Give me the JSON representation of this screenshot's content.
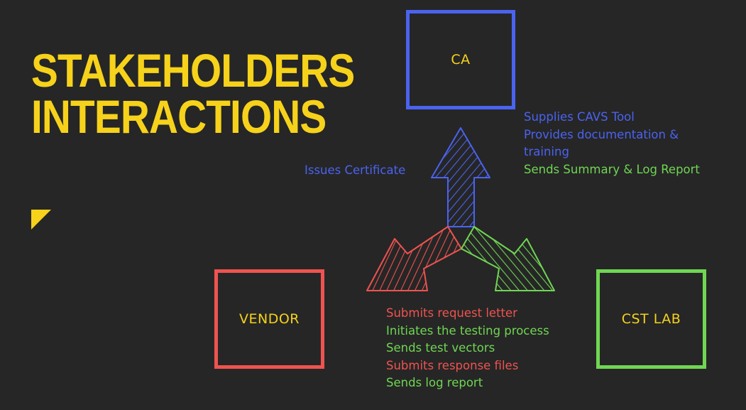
{
  "slide": {
    "title_line_1": "STAKEHOLDERS",
    "title_line_2": "INTERACTIONS"
  },
  "colors": {
    "background": "#262626",
    "title": "#f6d21b",
    "ca": "#4a63f0",
    "vendor": "#ef5350",
    "lab": "#6fd653"
  },
  "nodes": {
    "ca": {
      "label": "CA",
      "color": "#4a63f0"
    },
    "vendor": {
      "label": "VENDOR",
      "color": "#ef5350"
    },
    "lab": {
      "label": "CST LAB",
      "color": "#6fd653"
    }
  },
  "annotations": {
    "issues_certificate": {
      "text": "Issues Certificate",
      "color": "#4a63f0"
    },
    "ca_side": [
      {
        "text": "Supplies CAVS Tool",
        "color": "#4a63f0"
      },
      {
        "text": "Provides documentation &",
        "color": "#4a63f0"
      },
      {
        "text": "training",
        "color": "#4a63f0"
      },
      {
        "text": "Sends Summary & Log Report",
        "color": "#6fd653"
      }
    ],
    "bottom": [
      {
        "text": "Submits request letter",
        "color": "#ef5350"
      },
      {
        "text": "Initiates the testing process",
        "color": "#6fd653"
      },
      {
        "text": "Sends test vectors",
        "color": "#6fd653"
      },
      {
        "text": "Submits response files",
        "color": "#ef5350"
      },
      {
        "text": "Sends log report",
        "color": "#6fd653"
      }
    ]
  },
  "arrows": [
    {
      "name": "arrow-to-ca",
      "color": "#4a63f0"
    },
    {
      "name": "arrow-to-vendor",
      "color": "#ef5350"
    },
    {
      "name": "arrow-to-lab",
      "color": "#6fd653"
    }
  ]
}
